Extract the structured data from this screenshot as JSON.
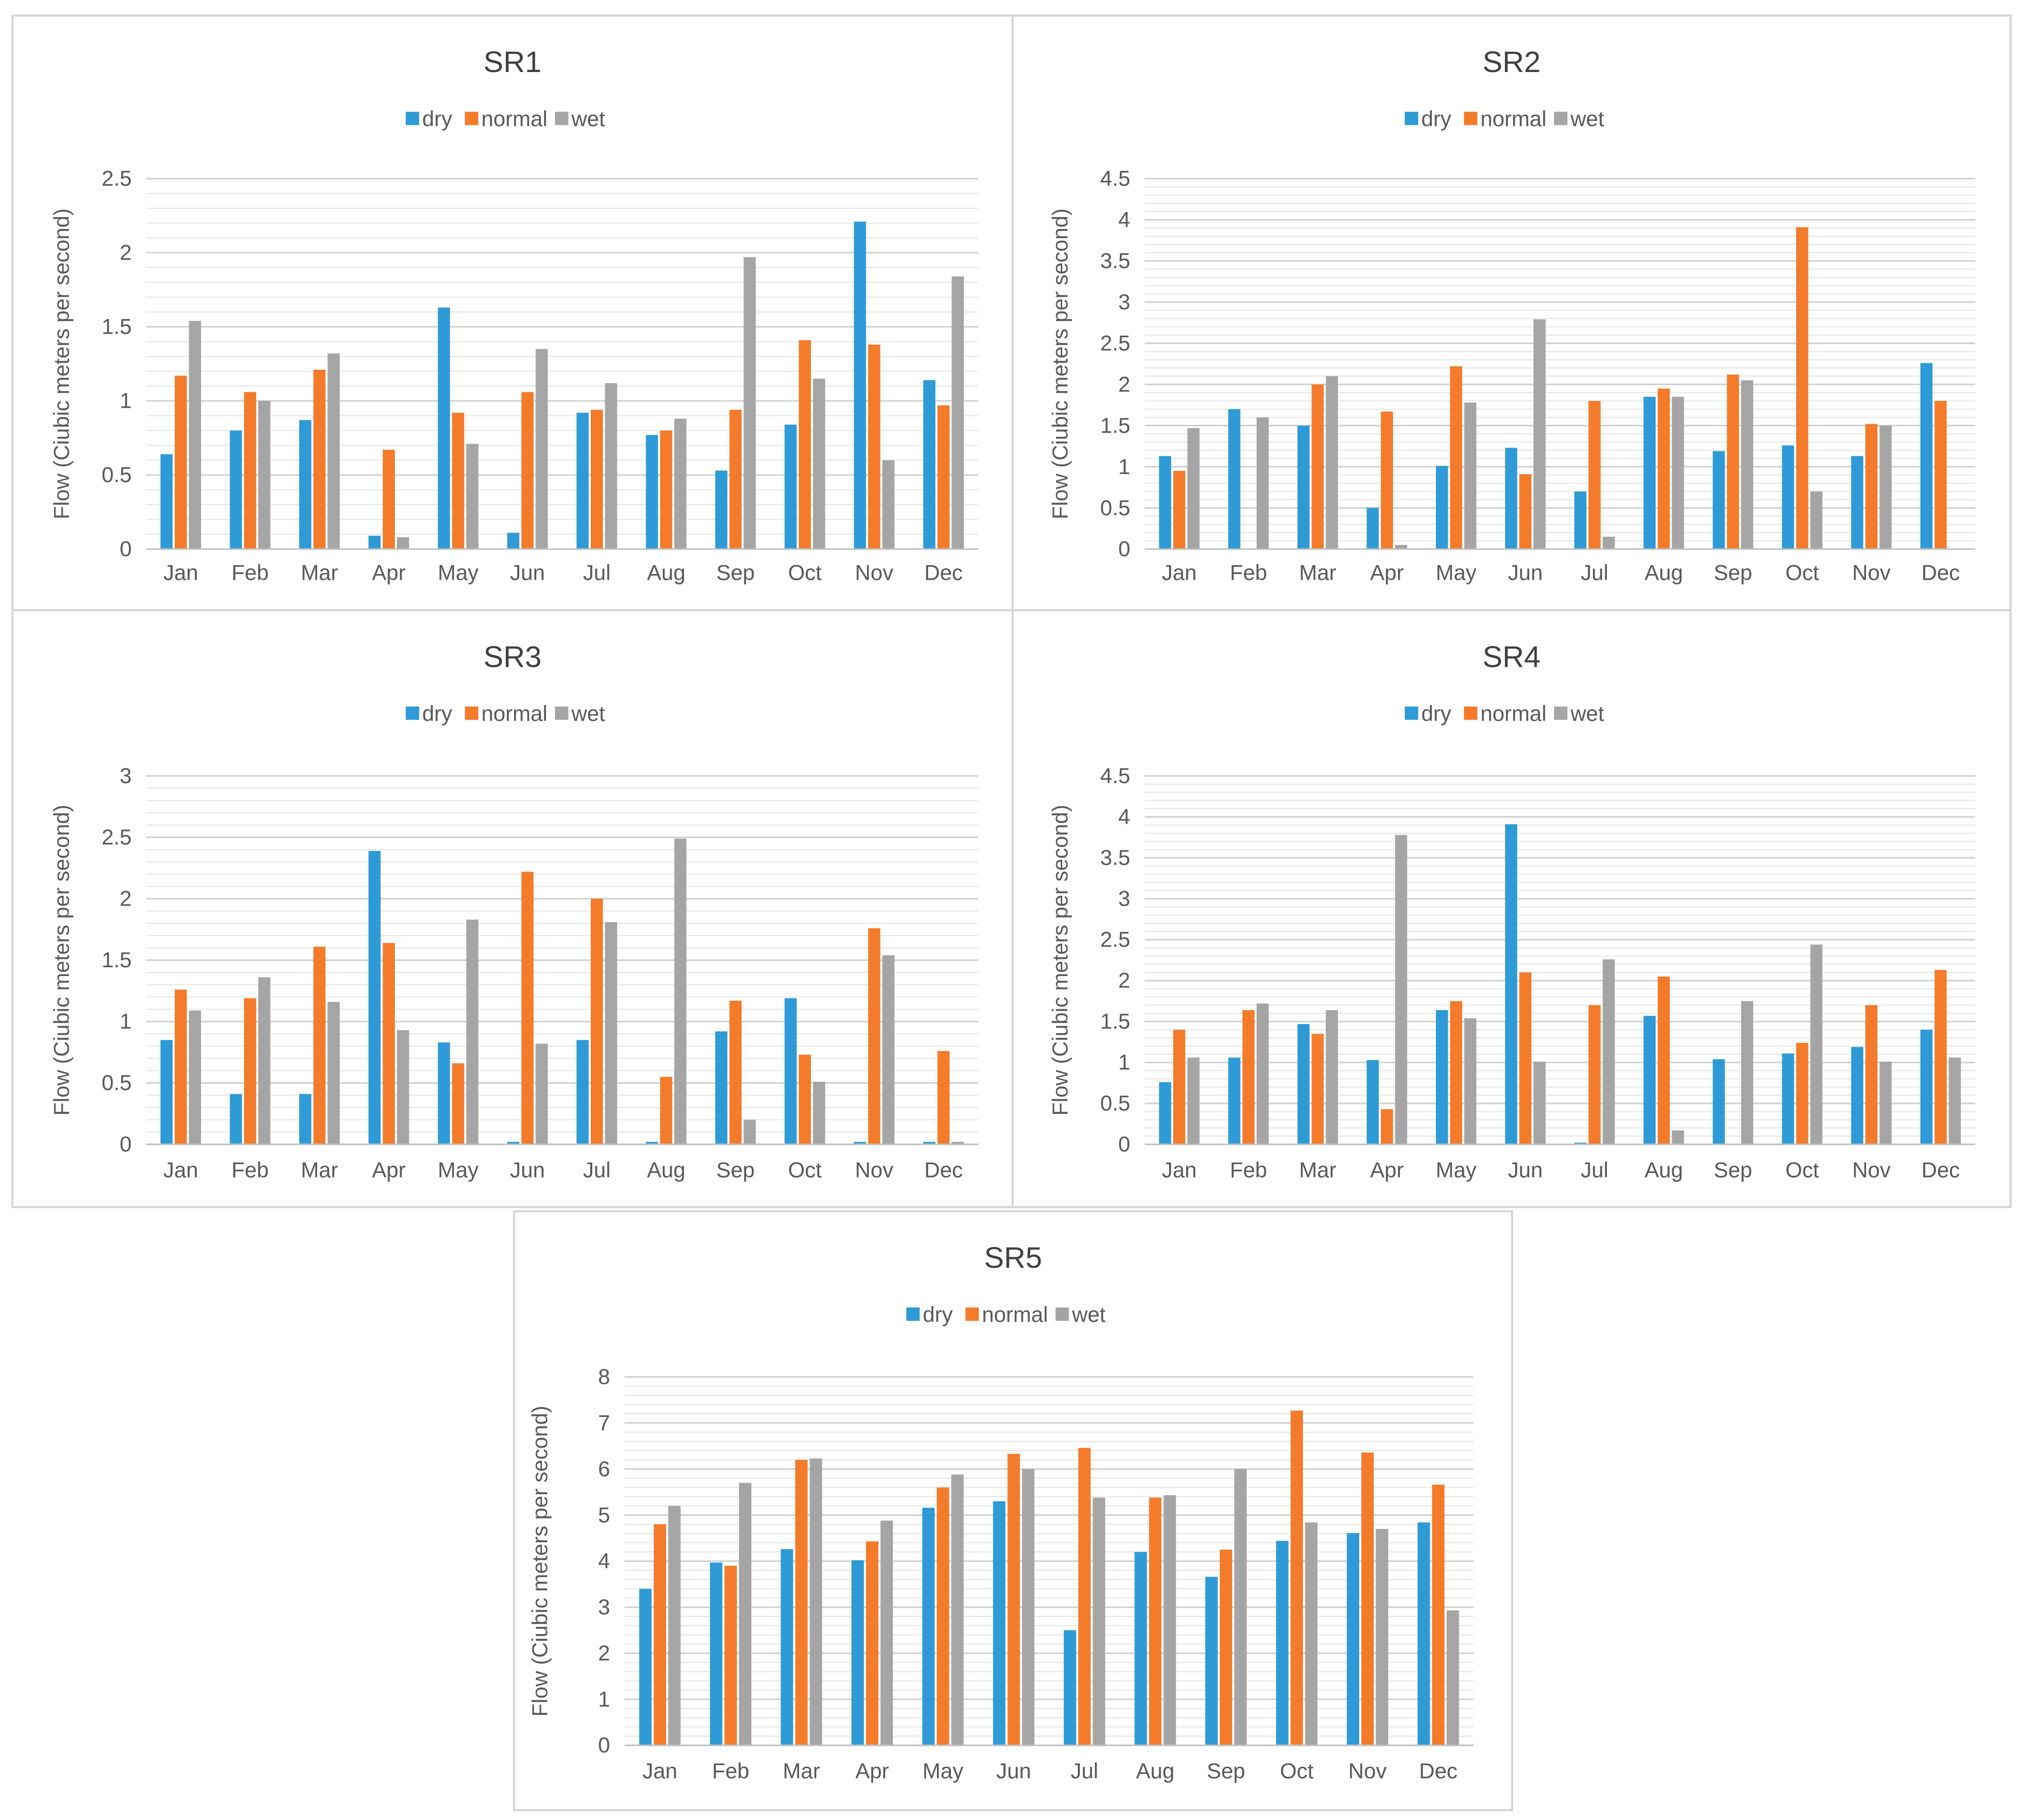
{
  "chart_data": [
    {
      "type": "bar",
      "title": "SR1",
      "xlabel": "",
      "ylabel": "Flow (Ciubic meters per second)",
      "categories": [
        "Jan",
        "Feb",
        "Mar",
        "Apr",
        "May",
        "Jun",
        "Jul",
        "Aug",
        "Sep",
        "Oct",
        "Nov",
        "Dec"
      ],
      "ylim": [
        0,
        2.5
      ],
      "yticks": [
        0,
        0.5,
        1,
        1.5,
        2,
        2.5
      ],
      "minor_grid_step": 0.1,
      "legend_position": "top",
      "series": [
        {
          "name": "dry",
          "color": "#2E9BD6",
          "values": [
            0.64,
            0.8,
            0.87,
            0.09,
            1.63,
            0.11,
            0.92,
            0.77,
            0.53,
            0.84,
            2.21,
            1.14
          ]
        },
        {
          "name": "normal",
          "color": "#F47B2A",
          "values": [
            1.17,
            1.06,
            1.21,
            0.67,
            0.92,
            1.06,
            0.94,
            0.8,
            0.94,
            1.41,
            1.38,
            0.97
          ]
        },
        {
          "name": "wet",
          "color": "#A5A5A5",
          "values": [
            1.54,
            1.0,
            1.32,
            0.08,
            0.71,
            1.35,
            1.12,
            0.88,
            1.97,
            1.15,
            0.6,
            1.84
          ]
        }
      ]
    },
    {
      "type": "bar",
      "title": "SR2",
      "xlabel": "",
      "ylabel": "Flow (Ciubic meters per second)",
      "categories": [
        "Jan",
        "Feb",
        "Mar",
        "Apr",
        "May",
        "Jun",
        "Jul",
        "Aug",
        "Sep",
        "Oct",
        "Nov",
        "Dec"
      ],
      "ylim": [
        0,
        4.5
      ],
      "yticks": [
        0,
        0.5,
        1,
        1.5,
        2,
        2.5,
        3,
        3.5,
        4,
        4.5
      ],
      "minor_grid_step": 0.1,
      "legend_position": "top",
      "series": [
        {
          "name": "dry",
          "color": "#2E9BD6",
          "values": [
            1.13,
            1.7,
            1.5,
            0.5,
            1.01,
            1.23,
            0.7,
            1.85,
            1.19,
            1.26,
            1.13,
            2.26
          ]
        },
        {
          "name": "normal",
          "color": "#F47B2A",
          "values": [
            0.95,
            0.0,
            2.0,
            1.67,
            2.22,
            0.91,
            1.8,
            1.95,
            2.12,
            3.91,
            1.52,
            1.8
          ]
        },
        {
          "name": "wet",
          "color": "#A5A5A5",
          "values": [
            1.47,
            1.6,
            2.1,
            0.05,
            1.78,
            2.79,
            0.15,
            1.85,
            2.05,
            0.7,
            1.5,
            0.0
          ]
        }
      ]
    },
    {
      "type": "bar",
      "title": "SR3",
      "xlabel": "",
      "ylabel": "Flow (Ciubic meters per second)",
      "categories": [
        "Jan",
        "Feb",
        "Mar",
        "Apr",
        "May",
        "Jun",
        "Jul",
        "Aug",
        "Sep",
        "Oct",
        "Nov",
        "Dec"
      ],
      "ylim": [
        0,
        3
      ],
      "yticks": [
        0,
        0.5,
        1,
        1.5,
        2,
        2.5,
        3
      ],
      "minor_grid_step": 0.1,
      "legend_position": "top",
      "series": [
        {
          "name": "dry",
          "color": "#2E9BD6",
          "values": [
            0.85,
            0.41,
            0.41,
            2.39,
            0.83,
            0.02,
            0.85,
            0.02,
            0.92,
            1.19,
            0.02,
            0.02
          ]
        },
        {
          "name": "normal",
          "color": "#F47B2A",
          "values": [
            1.26,
            1.19,
            1.61,
            1.64,
            0.66,
            2.22,
            2.0,
            0.55,
            1.17,
            0.73,
            1.76,
            0.76
          ]
        },
        {
          "name": "wet",
          "color": "#A5A5A5",
          "values": [
            1.09,
            1.36,
            1.16,
            0.93,
            1.83,
            0.82,
            1.81,
            2.49,
            0.2,
            0.51,
            1.54,
            0.02
          ]
        }
      ]
    },
    {
      "type": "bar",
      "title": "SR4",
      "xlabel": "",
      "ylabel": "Flow (Ciubic meters per second)",
      "categories": [
        "Jan",
        "Feb",
        "Mar",
        "Apr",
        "May",
        "Jun",
        "Jul",
        "Aug",
        "Sep",
        "Oct",
        "Nov",
        "Dec"
      ],
      "ylim": [
        0,
        4.5
      ],
      "yticks": [
        0,
        0.5,
        1,
        1.5,
        2,
        2.5,
        3,
        3.5,
        4,
        4.5
      ],
      "minor_grid_step": 0.1,
      "legend_position": "top",
      "series": [
        {
          "name": "dry",
          "color": "#2E9BD6",
          "values": [
            0.76,
            1.06,
            1.47,
            1.03,
            1.64,
            3.91,
            0.02,
            1.57,
            1.04,
            1.11,
            1.19,
            1.4
          ]
        },
        {
          "name": "normal",
          "color": "#F47B2A",
          "values": [
            1.4,
            1.64,
            1.35,
            0.43,
            1.75,
            2.1,
            1.7,
            2.05,
            0.0,
            1.24,
            1.7,
            2.13
          ]
        },
        {
          "name": "wet",
          "color": "#A5A5A5",
          "values": [
            1.06,
            1.72,
            1.64,
            3.78,
            1.54,
            1.01,
            2.26,
            0.17,
            1.75,
            2.44,
            1.01,
            1.06
          ]
        }
      ]
    },
    {
      "type": "bar",
      "title": "SR5",
      "xlabel": "",
      "ylabel": "Flow (Ciubic meters per second)",
      "categories": [
        "Jan",
        "Feb",
        "Mar",
        "Apr",
        "May",
        "Jun",
        "Jul",
        "Aug",
        "Sep",
        "Oct",
        "Nov",
        "Dec"
      ],
      "ylim": [
        0,
        8
      ],
      "yticks": [
        0,
        1,
        2,
        3,
        4,
        5,
        6,
        7,
        8
      ],
      "minor_grid_step": 0.2,
      "legend_position": "top",
      "series": [
        {
          "name": "dry",
          "color": "#2E9BD6",
          "values": [
            3.4,
            3.97,
            4.26,
            4.02,
            5.16,
            5.3,
            2.5,
            4.2,
            3.66,
            4.44,
            4.61,
            4.84
          ]
        },
        {
          "name": "normal",
          "color": "#F47B2A",
          "values": [
            4.8,
            3.9,
            6.2,
            4.43,
            5.6,
            6.33,
            6.46,
            5.38,
            4.25,
            7.27,
            6.36,
            5.66
          ]
        },
        {
          "name": "wet",
          "color": "#A5A5A5",
          "values": [
            5.2,
            5.7,
            6.23,
            4.88,
            5.88,
            6.0,
            5.38,
            5.43,
            6.0,
            4.84,
            4.7,
            2.93
          ]
        }
      ]
    }
  ]
}
